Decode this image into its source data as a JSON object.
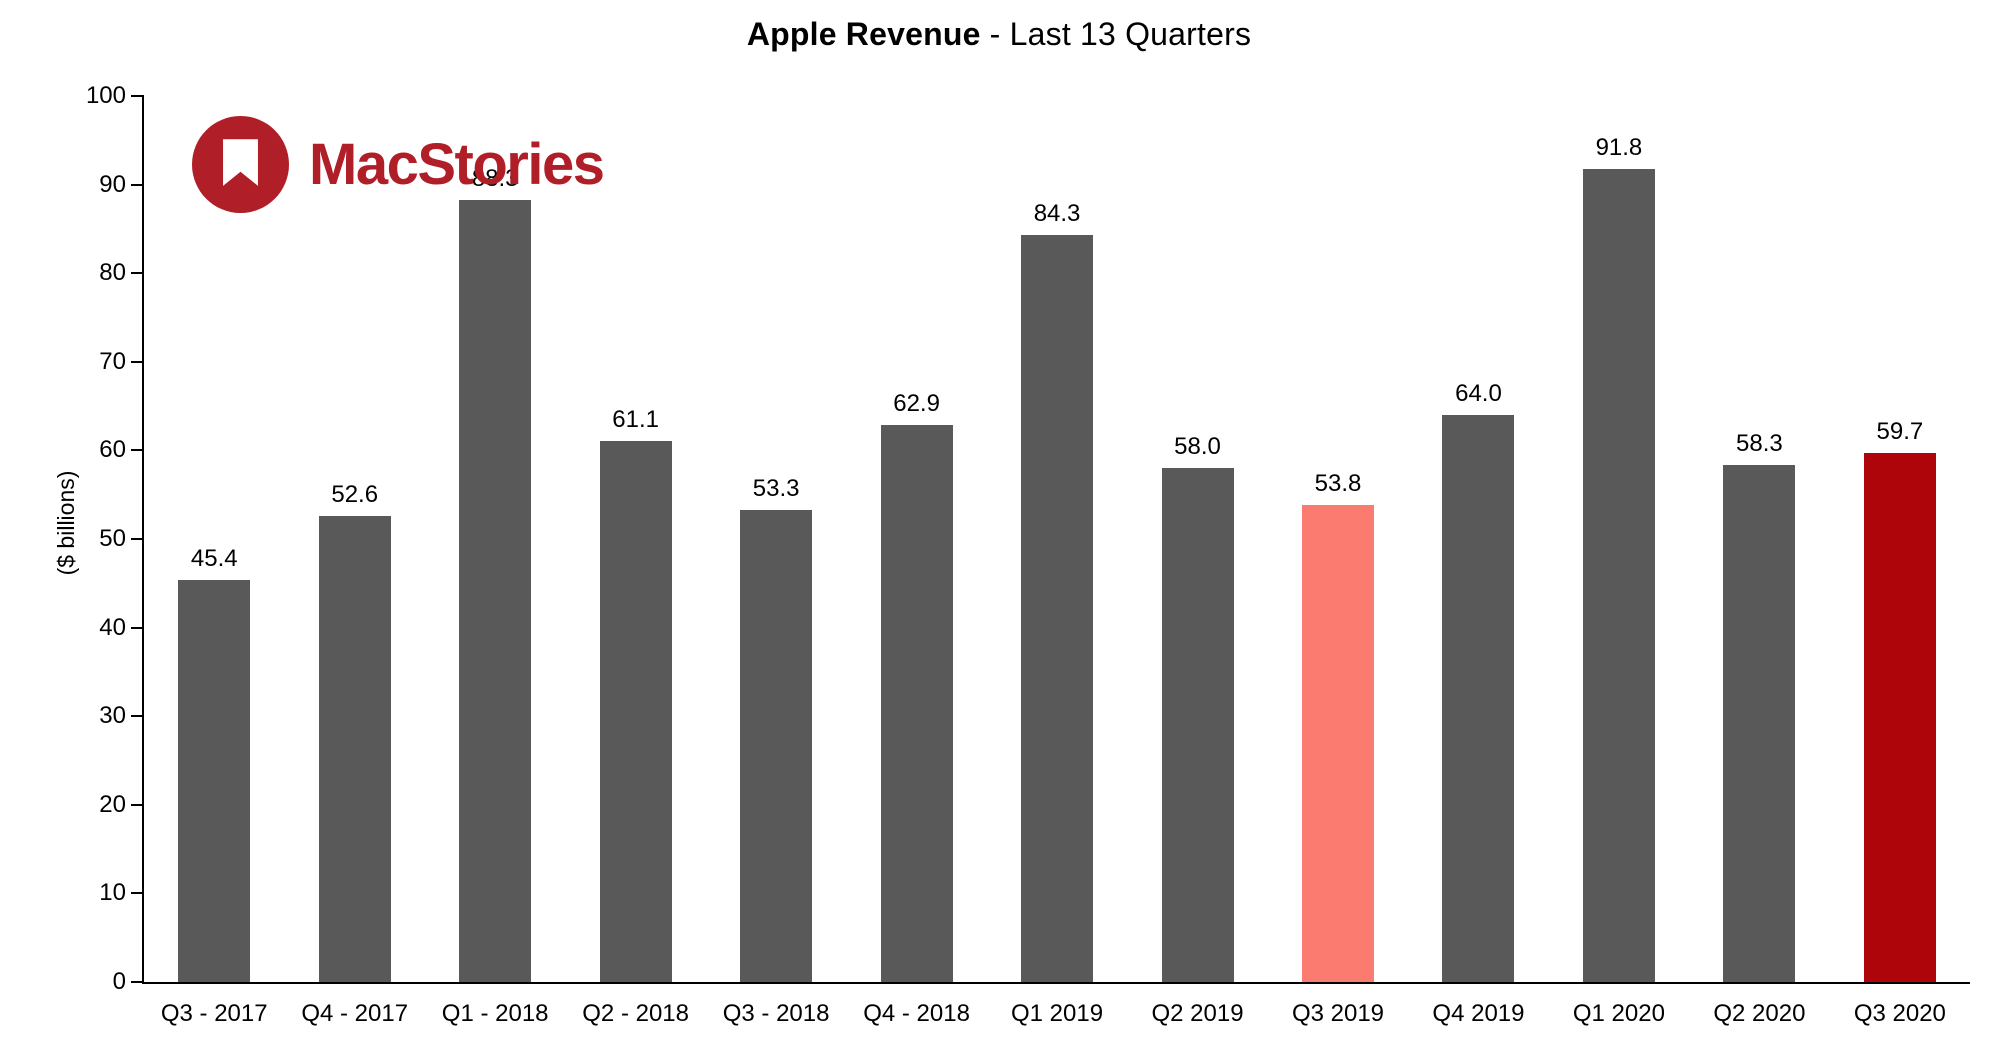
{
  "title": {
    "bold": "Apple Revenue",
    "rest": " - Last 13 Quarters"
  },
  "logo": {
    "text": "MacStories",
    "color": "#b01e28"
  },
  "chart_data": {
    "type": "bar",
    "title": "Apple Revenue - Last 13 Quarters",
    "xlabel": "",
    "ylabel": "($ billions)",
    "ylim": [
      0,
      100
    ],
    "yticks": [
      0,
      10,
      20,
      30,
      40,
      50,
      60,
      70,
      80,
      90,
      100
    ],
    "grid": false,
    "legend": false,
    "categories": [
      "Q3 - 2017",
      "Q4 - 2017",
      "Q1 - 2018",
      "Q2 - 2018",
      "Q3 - 2018",
      "Q4 - 2018",
      "Q1 2019",
      "Q2 2019",
      "Q3 2019",
      "Q4 2019",
      "Q1 2020",
      "Q2 2020",
      "Q3 2020"
    ],
    "values": [
      45.4,
      52.6,
      88.3,
      61.1,
      53.3,
      62.9,
      84.3,
      58.0,
      53.8,
      64.0,
      91.8,
      58.3,
      59.7
    ],
    "labels": [
      "45.4",
      "52.6",
      "88.3",
      "61.1",
      "53.3",
      "62.9",
      "84.3",
      "58.0",
      "53.8",
      "64.0",
      "91.8",
      "58.3",
      "59.7"
    ],
    "bar_colors": [
      "#595959",
      "#595959",
      "#595959",
      "#595959",
      "#595959",
      "#595959",
      "#595959",
      "#595959",
      "#fb7b70",
      "#595959",
      "#595959",
      "#595959",
      "#ad0509"
    ],
    "default_bar_color": "#595959",
    "highlight_light_color": "#fb7b70",
    "highlight_dark_color": "#ad0509",
    "axis_color": "#000000"
  }
}
